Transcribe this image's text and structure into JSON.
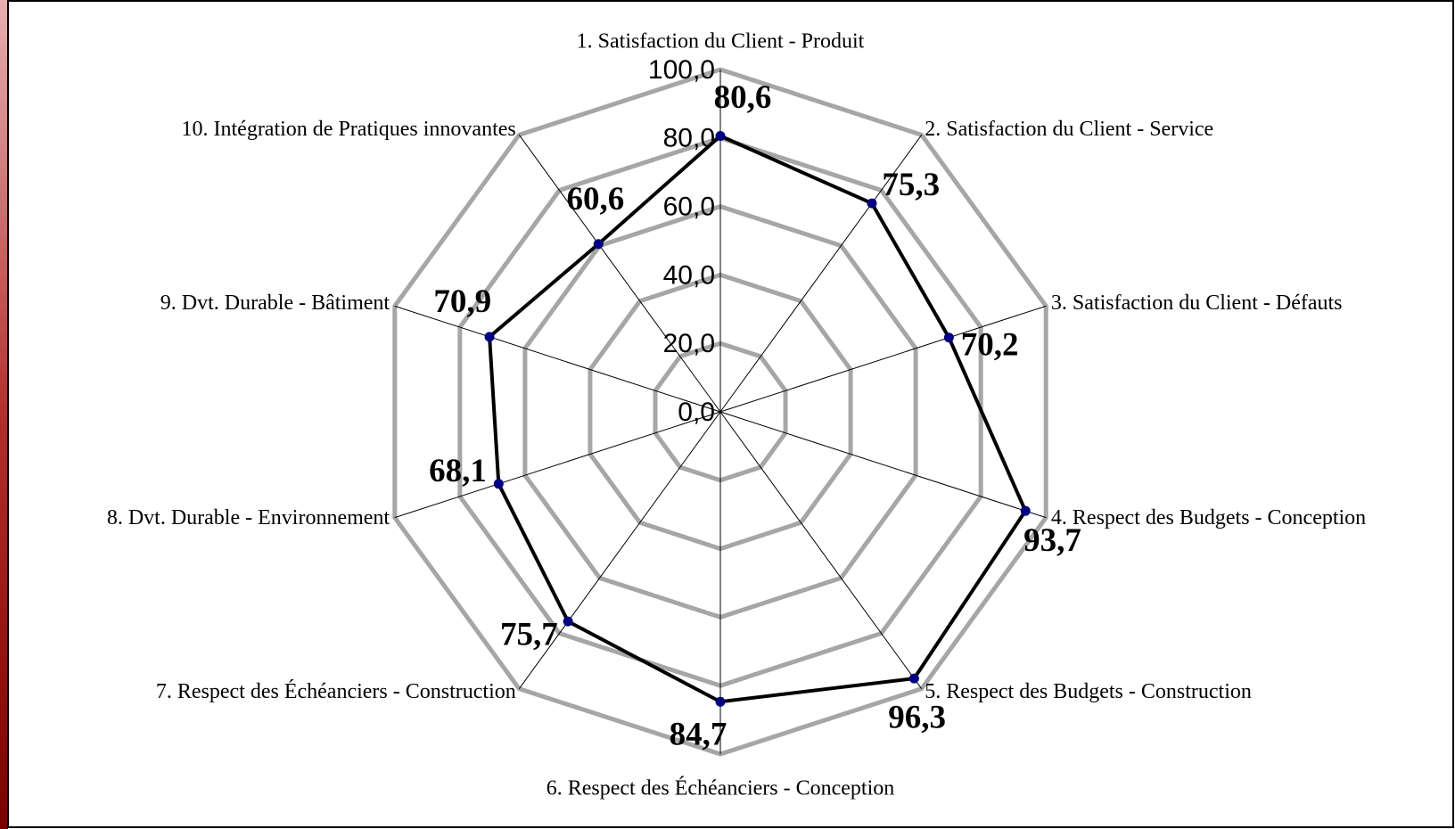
{
  "chart_data": {
    "type": "radar",
    "categories": [
      "1. Satisfaction du Client - Produit",
      "2. Satisfaction du Client - Service",
      "3. Satisfaction du Client - Défauts",
      "4. Respect des Budgets - Conception",
      "5. Respect des Budgets - Construction",
      "6. Respect des Échéanciers - Conception",
      "7. Respect des Échéanciers - Construction",
      "8. Dvt. Durable - Environnement",
      "9. Dvt. Durable -  Bâtiment",
      "10. Intégration de Pratiques innovantes"
    ],
    "values": [
      80.6,
      75.3,
      70.2,
      93.7,
      96.3,
      84.7,
      75.7,
      68.1,
      70.9,
      60.6
    ],
    "value_labels": [
      "80,6",
      "75,3",
      "70,2",
      "93,7",
      "96,3",
      "84,7",
      "75,7",
      "68,1",
      "70,9",
      "60,6"
    ],
    "color": "#000000",
    "marker_color": "#000080",
    "grid_color": "#a6a6a6",
    "rlim": [
      0,
      100
    ],
    "rticks": [
      {
        "value": 0,
        "label": "0,0"
      },
      {
        "value": 20,
        "label": "20,0"
      },
      {
        "value": 40,
        "label": "40,0"
      },
      {
        "value": 60,
        "label": "60,0"
      },
      {
        "value": 80,
        "label": "80,0"
      },
      {
        "value": 100,
        "label": "100,0"
      }
    ],
    "grid": true
  }
}
